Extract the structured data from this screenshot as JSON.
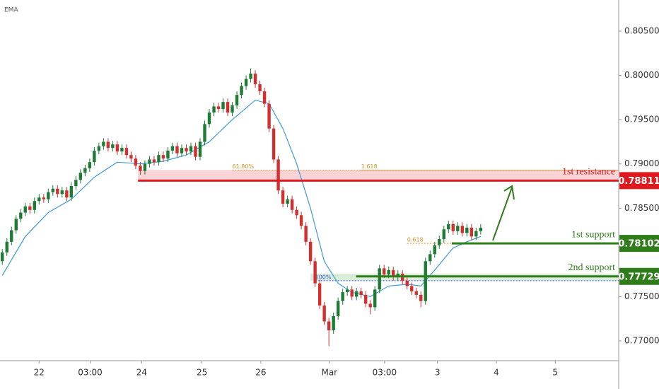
{
  "chart_data": {
    "type": "candlestick",
    "indicator_label": "EMA",
    "xlim": [
      -0.5,
      134
    ],
    "ylim": [
      0.76776,
      0.80852
    ],
    "yticks": [
      {
        "value": 0.805,
        "label": "0.80500"
      },
      {
        "value": 0.8,
        "label": "0.80000"
      },
      {
        "value": 0.795,
        "label": "0.79500"
      },
      {
        "value": 0.79,
        "label": "0.79000"
      },
      {
        "value": 0.785,
        "label": "0.78500"
      },
      {
        "value": 0.775,
        "label": "0.77500"
      },
      {
        "value": 0.77,
        "label": "0.77000"
      }
    ],
    "xticks": [
      {
        "value": 8,
        "label": "22"
      },
      {
        "value": 19.1,
        "label": "03:00"
      },
      {
        "value": 30.3,
        "label": "24"
      },
      {
        "value": 43.4,
        "label": "25"
      },
      {
        "value": 56.2,
        "label": "26"
      },
      {
        "value": 71.1,
        "label": "Mar"
      },
      {
        "value": 83.1,
        "label": "03:00"
      },
      {
        "value": 94.6,
        "label": "3"
      },
      {
        "value": 107.4,
        "label": "4"
      },
      {
        "value": 120.2,
        "label": "5"
      }
    ],
    "up_color": "#1e7b34",
    "down_color": "#d32f2f",
    "open": [
      0.779,
      0.78,
      0.7812,
      0.7825,
      0.7838,
      0.7845,
      0.7852,
      0.7848,
      0.7858,
      0.7862,
      0.786,
      0.7868,
      0.7872,
      0.7866,
      0.787,
      0.7862,
      0.7875,
      0.7882,
      0.789,
      0.7895,
      0.7902,
      0.7915,
      0.792,
      0.7925,
      0.7918,
      0.7922,
      0.7914,
      0.7918,
      0.791,
      0.7906,
      0.7898,
      0.7892,
      0.79,
      0.7905,
      0.7902,
      0.791,
      0.7906,
      0.7915,
      0.792,
      0.7912,
      0.7918,
      0.7914,
      0.792,
      0.7908,
      0.7925,
      0.7945,
      0.7958,
      0.7965,
      0.7962,
      0.797,
      0.7958,
      0.7966,
      0.7978,
      0.7988,
      0.7996,
      0.8002,
      0.799,
      0.7982,
      0.7968,
      0.794,
      0.7905,
      0.787,
      0.7855,
      0.786,
      0.7848,
      0.7842,
      0.783,
      0.7812,
      0.779,
      0.7765,
      0.774,
      0.7722,
      0.7712,
      0.7728,
      0.7745,
      0.7755,
      0.7758,
      0.775,
      0.7756,
      0.7752,
      0.7742,
      0.7738,
      0.7758,
      0.7782,
      0.7775,
      0.778,
      0.7772,
      0.7776,
      0.7768,
      0.7762,
      0.7756,
      0.7752,
      0.7745,
      0.779,
      0.7798,
      0.7808,
      0.7815,
      0.7826,
      0.7832,
      0.7824,
      0.783,
      0.7822,
      0.7828,
      0.7818,
      0.7824
    ],
    "high": [
      0.7804,
      0.7816,
      0.7829,
      0.7842,
      0.7849,
      0.7856,
      0.7856,
      0.7862,
      0.7866,
      0.7866,
      0.7872,
      0.7876,
      0.7876,
      0.7874,
      0.7874,
      0.7879,
      0.7886,
      0.7894,
      0.7899,
      0.7906,
      0.7919,
      0.7924,
      0.7929,
      0.7929,
      0.7926,
      0.7926,
      0.7922,
      0.7922,
      0.7914,
      0.791,
      0.7902,
      0.7904,
      0.7909,
      0.7909,
      0.7914,
      0.7914,
      0.7919,
      0.7924,
      0.7924,
      0.7922,
      0.7922,
      0.7924,
      0.7924,
      0.7929,
      0.7949,
      0.7962,
      0.7969,
      0.7969,
      0.7974,
      0.7974,
      0.797,
      0.7982,
      0.7992,
      0.8,
      0.8008,
      0.8006,
      0.7994,
      0.7986,
      0.7972,
      0.7944,
      0.7909,
      0.7874,
      0.7864,
      0.7864,
      0.7852,
      0.7846,
      0.7834,
      0.7816,
      0.7794,
      0.7769,
      0.7744,
      0.7726,
      0.7732,
      0.7749,
      0.7759,
      0.7762,
      0.7762,
      0.776,
      0.776,
      0.7756,
      0.7746,
      0.7762,
      0.7786,
      0.7786,
      0.7784,
      0.7784,
      0.778,
      0.778,
      0.7772,
      0.7766,
      0.776,
      0.7756,
      0.7794,
      0.7802,
      0.7812,
      0.7819,
      0.783,
      0.7836,
      0.7836,
      0.7834,
      0.7834,
      0.7832,
      0.7832,
      0.7828,
      0.7832
    ],
    "low": [
      0.7786,
      0.7796,
      0.7808,
      0.7821,
      0.7834,
      0.7841,
      0.7844,
      0.7844,
      0.7854,
      0.7856,
      0.7856,
      0.7864,
      0.7862,
      0.7862,
      0.7858,
      0.7858,
      0.7871,
      0.7878,
      0.7886,
      0.7891,
      0.7898,
      0.7911,
      0.7916,
      0.7914,
      0.7914,
      0.791,
      0.791,
      0.7906,
      0.7902,
      0.7894,
      0.7888,
      0.7888,
      0.7896,
      0.7898,
      0.7898,
      0.7902,
      0.7902,
      0.7911,
      0.7908,
      0.7908,
      0.791,
      0.791,
      0.7904,
      0.7904,
      0.7921,
      0.7941,
      0.7954,
      0.7958,
      0.7958,
      0.7954,
      0.7954,
      0.7962,
      0.7974,
      0.7984,
      0.7992,
      0.7986,
      0.7978,
      0.7964,
      0.7936,
      0.7901,
      0.7866,
      0.7851,
      0.7851,
      0.7844,
      0.7838,
      0.7826,
      0.7808,
      0.7786,
      0.7761,
      0.7736,
      0.7718,
      0.7694,
      0.7708,
      0.7724,
      0.7741,
      0.7751,
      0.7746,
      0.7746,
      0.7748,
      0.7738,
      0.773,
      0.7734,
      0.7754,
      0.7771,
      0.7771,
      0.7768,
      0.7768,
      0.7764,
      0.7758,
      0.7752,
      0.7748,
      0.7738,
      0.7741,
      0.7786,
      0.7794,
      0.7804,
      0.7811,
      0.7822,
      0.782,
      0.782,
      0.7818,
      0.7818,
      0.7814,
      0.7814,
      0.782
    ],
    "close": [
      0.78,
      0.7812,
      0.7825,
      0.7838,
      0.7845,
      0.7852,
      0.7848,
      0.7858,
      0.7862,
      0.786,
      0.7868,
      0.7872,
      0.7866,
      0.787,
      0.7862,
      0.7875,
      0.7882,
      0.789,
      0.7895,
      0.7902,
      0.7915,
      0.792,
      0.7925,
      0.7918,
      0.7922,
      0.7914,
      0.7918,
      0.791,
      0.7906,
      0.7898,
      0.7892,
      0.79,
      0.7905,
      0.7902,
      0.791,
      0.7906,
      0.7915,
      0.792,
      0.7912,
      0.7918,
      0.7914,
      0.792,
      0.7908,
      0.7925,
      0.7945,
      0.7958,
      0.7965,
      0.7962,
      0.797,
      0.7958,
      0.7966,
      0.7978,
      0.7988,
      0.7996,
      0.8002,
      0.799,
      0.7982,
      0.7968,
      0.794,
      0.7905,
      0.787,
      0.7855,
      0.786,
      0.7848,
      0.7842,
      0.783,
      0.7812,
      0.779,
      0.7765,
      0.774,
      0.7722,
      0.7712,
      0.7728,
      0.7745,
      0.7755,
      0.7758,
      0.775,
      0.7756,
      0.7752,
      0.7742,
      0.7738,
      0.7758,
      0.7782,
      0.7775,
      0.778,
      0.7772,
      0.7776,
      0.7768,
      0.7762,
      0.7756,
      0.7752,
      0.7745,
      0.779,
      0.7798,
      0.7808,
      0.7815,
      0.7826,
      0.7832,
      0.7824,
      0.783,
      0.7822,
      0.7828,
      0.7818,
      0.7824,
      0.7828
    ],
    "ema": {
      "color": "#3a9ad9",
      "x": [
        0,
        5,
        10,
        15,
        20,
        25,
        30,
        35,
        40,
        45,
        50,
        55,
        58,
        61,
        64,
        67,
        70,
        73,
        76,
        80,
        84,
        88,
        91,
        94,
        98,
        101,
        104
      ],
      "values": [
        0.7774,
        0.7818,
        0.7845,
        0.786,
        0.7885,
        0.7902,
        0.79,
        0.7903,
        0.791,
        0.7925,
        0.795,
        0.7972,
        0.7968,
        0.794,
        0.79,
        0.785,
        0.779,
        0.7765,
        0.7755,
        0.775,
        0.7762,
        0.7764,
        0.7762,
        0.778,
        0.7805,
        0.7812,
        0.7818
      ]
    },
    "zones": [
      {
        "from": 0.78811,
        "to": 0.7893,
        "start": 29.5,
        "color": "#f8c8cc"
      },
      {
        "from": 0.7768,
        "to": 0.7776,
        "start": 67,
        "color": "#cfe8cf"
      }
    ],
    "levels": [
      {
        "name": "1st resistance",
        "value": 0.78811,
        "value_label": "0.78811",
        "start": 29.5,
        "color": "#e0191f"
      },
      {
        "name": "1st support",
        "value": 0.78102,
        "value_label": "0.78102",
        "start": 97.7,
        "color": "#2e7d1a"
      },
      {
        "name": "2nd support",
        "value": 0.77729,
        "value_label": "0.77729",
        "start": 76.9,
        "color": "#2e7d1a"
      }
    ],
    "fib_lines": [
      {
        "label": "61.80%",
        "value": 0.7893,
        "start": 50,
        "color": "#d4952a"
      },
      {
        "label": "1.618",
        "value": 0.7893,
        "start": 78,
        "color": "#d4952a"
      },
      {
        "label": "0.618",
        "value": 0.78102,
        "start": 88,
        "color": "#d4952a"
      },
      {
        "label": "100%",
        "value": 0.7768,
        "start": 68,
        "color": "#3b5bd9"
      }
    ]
  }
}
